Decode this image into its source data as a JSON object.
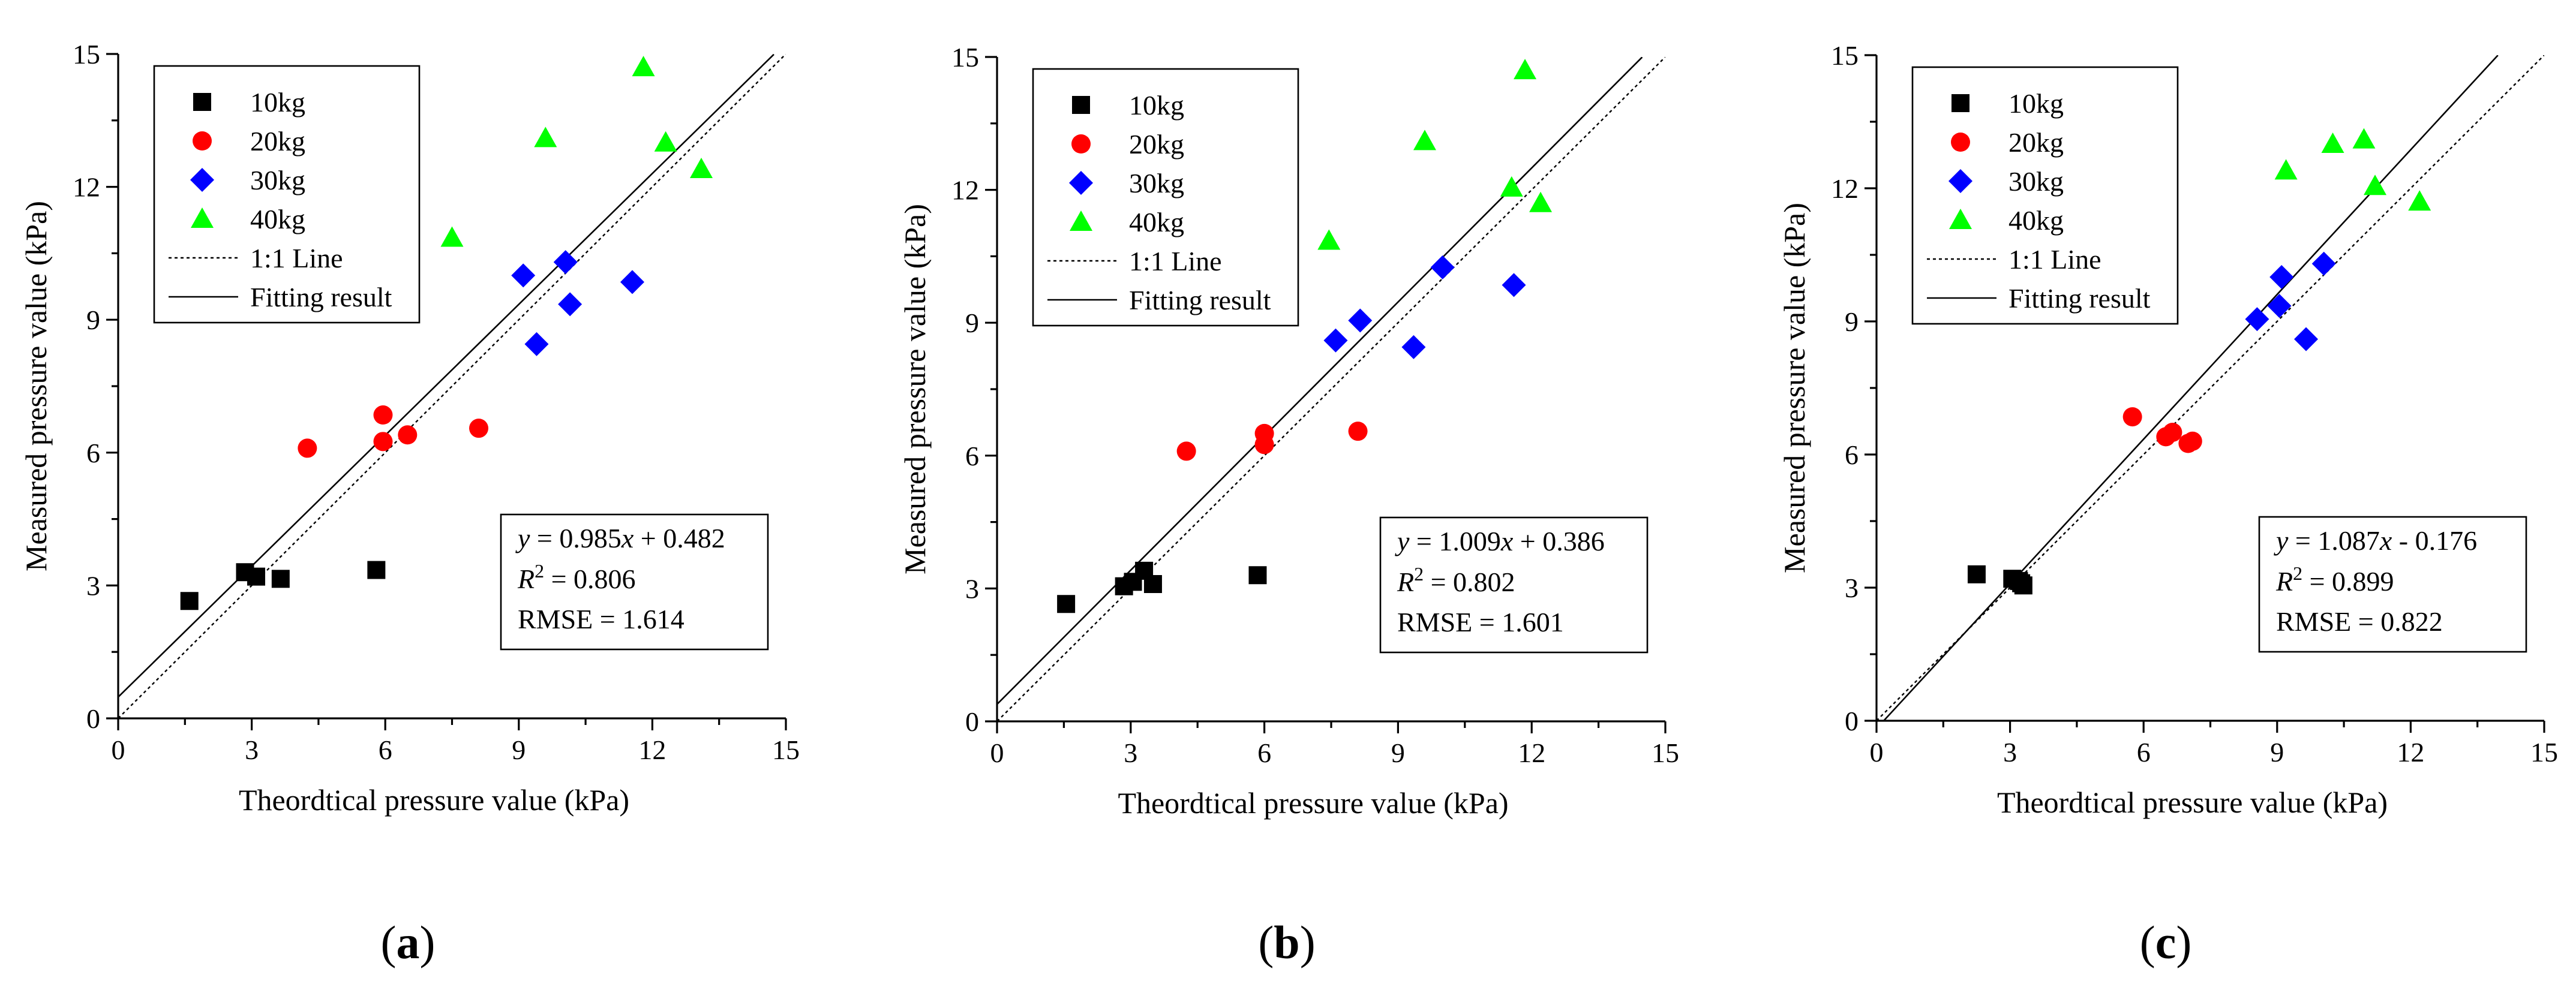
{
  "figure": {
    "series_styles": [
      {
        "name": "10kg",
        "marker": "square",
        "color": "#000000"
      },
      {
        "name": "20kg",
        "marker": "circle",
        "color": "#ff0000"
      },
      {
        "name": "30kg",
        "marker": "diamond",
        "color": "#0000ff"
      },
      {
        "name": "40kg",
        "marker": "triangle",
        "color": "#00ff00"
      }
    ],
    "legend_lines": [
      {
        "label": "1:1 Line",
        "style": "dotted"
      },
      {
        "label": "Fitting result",
        "style": "solid"
      }
    ]
  },
  "chart_data": [
    {
      "type": "scatter",
      "panel_label": "(a)",
      "panel_letter": "a",
      "xlabel": "Theordtical pressure value (kPa)",
      "ylabel": "Measured pressure value (kPa)",
      "xlim": [
        0,
        15
      ],
      "ylim": [
        0,
        15
      ],
      "xticks": [
        0,
        3,
        6,
        9,
        12,
        15
      ],
      "yticks": [
        0,
        3,
        6,
        9,
        12,
        15
      ],
      "legend_position": "top-left",
      "series": [
        {
          "name": "10kg",
          "x": [
            1.6,
            2.85,
            3.1,
            3.65,
            5.8
          ],
          "y": [
            2.65,
            3.3,
            3.2,
            3.15,
            3.35
          ]
        },
        {
          "name": "20kg",
          "x": [
            4.25,
            5.95,
            5.95,
            6.5,
            8.1
          ],
          "y": [
            6.1,
            6.85,
            6.25,
            6.4,
            6.55
          ]
        },
        {
          "name": "30kg",
          "x": [
            9.1,
            9.4,
            10.05,
            10.15,
            11.55
          ],
          "y": [
            10.0,
            8.45,
            10.3,
            9.35,
            9.85
          ]
        },
        {
          "name": "40kg",
          "x": [
            7.5,
            9.6,
            11.8,
            12.3,
            13.1
          ],
          "y": [
            10.85,
            13.1,
            14.7,
            13.0,
            12.4
          ]
        }
      ],
      "fit": {
        "slope": 0.985,
        "intercept": 0.482,
        "x_end": 14.73
      },
      "ref_line": {
        "x_end": 15.0
      },
      "stats": {
        "equation_rhs": " = 0.985x + 0.482",
        "r2_value": " = 0.806",
        "rmse_text": "RMSE = 1.614"
      },
      "stats_position": "bottom-right"
    },
    {
      "type": "scatter",
      "panel_label": "(b)",
      "panel_letter": "b",
      "xlabel": "Theordtical pressure value (kPa)",
      "ylabel": "Measured pressure value (kPa)",
      "xlim": [
        0,
        15
      ],
      "ylim": [
        0,
        15
      ],
      "xticks": [
        0,
        3,
        6,
        9,
        12,
        15
      ],
      "yticks": [
        0,
        3,
        6,
        9,
        12,
        15
      ],
      "legend_position": "top-left",
      "series": [
        {
          "name": "10kg",
          "x": [
            1.55,
            2.85,
            3.05,
            3.3,
            3.5,
            5.85
          ],
          "y": [
            2.65,
            3.05,
            3.15,
            3.4,
            3.1,
            3.3
          ]
        },
        {
          "name": "20kg",
          "x": [
            4.25,
            6.0,
            6.0,
            8.1
          ],
          "y": [
            6.1,
            6.5,
            6.25,
            6.55
          ]
        },
        {
          "name": "30kg",
          "x": [
            7.6,
            8.15,
            9.35,
            10.0,
            11.6
          ],
          "y": [
            8.6,
            9.05,
            8.45,
            10.25,
            9.85
          ]
        },
        {
          "name": "40kg",
          "x": [
            7.45,
            9.6,
            11.55,
            11.85,
            12.2
          ],
          "y": [
            10.85,
            13.1,
            12.05,
            14.7,
            11.7
          ]
        }
      ],
      "fit": {
        "slope": 1.009,
        "intercept": 0.386,
        "x_end": 14.48
      },
      "ref_line": {
        "x_end": 15.0
      },
      "stats": {
        "equation_rhs": " = 1.009x + 0.386",
        "r2_value": " = 0.802",
        "rmse_text": "RMSE = 1.601"
      },
      "stats_position": "bottom-right"
    },
    {
      "type": "scatter",
      "panel_label": "(c)",
      "panel_letter": "c",
      "xlabel": "Theordtical pressure value (kPa)",
      "ylabel": "Measured pressure value (kPa)",
      "xlim": [
        0,
        15
      ],
      "ylim": [
        0,
        15
      ],
      "xticks": [
        0,
        3,
        6,
        9,
        12,
        15
      ],
      "yticks": [
        0,
        3,
        6,
        9,
        12,
        15
      ],
      "legend_position": "top-left",
      "series": [
        {
          "name": "10kg",
          "x": [
            2.25,
            3.05,
            3.2,
            3.25,
            3.3
          ],
          "y": [
            3.3,
            3.2,
            3.15,
            3.1,
            3.05
          ]
        },
        {
          "name": "20kg",
          "x": [
            5.75,
            6.5,
            6.65,
            7.0,
            7.1
          ],
          "y": [
            6.85,
            6.4,
            6.5,
            6.25,
            6.3
          ]
        },
        {
          "name": "30kg",
          "x": [
            8.55,
            9.05,
            9.1,
            9.65,
            10.05
          ],
          "y": [
            9.05,
            9.35,
            10.0,
            8.6,
            10.3
          ]
        },
        {
          "name": "40kg",
          "x": [
            9.2,
            10.25,
            10.95,
            11.2,
            12.2
          ],
          "y": [
            12.4,
            13.0,
            13.1,
            12.05,
            11.7
          ]
        }
      ],
      "fit": {
        "slope": 1.087,
        "intercept": -0.176,
        "x_end": 13.96
      },
      "ref_line": {
        "x_end": 15.0
      },
      "stats": {
        "equation_rhs": " = 1.087x - 0.176",
        "r2_value": " = 0.899",
        "rmse_text": "RMSE = 0.822"
      },
      "stats_position": "bottom-right"
    }
  ]
}
